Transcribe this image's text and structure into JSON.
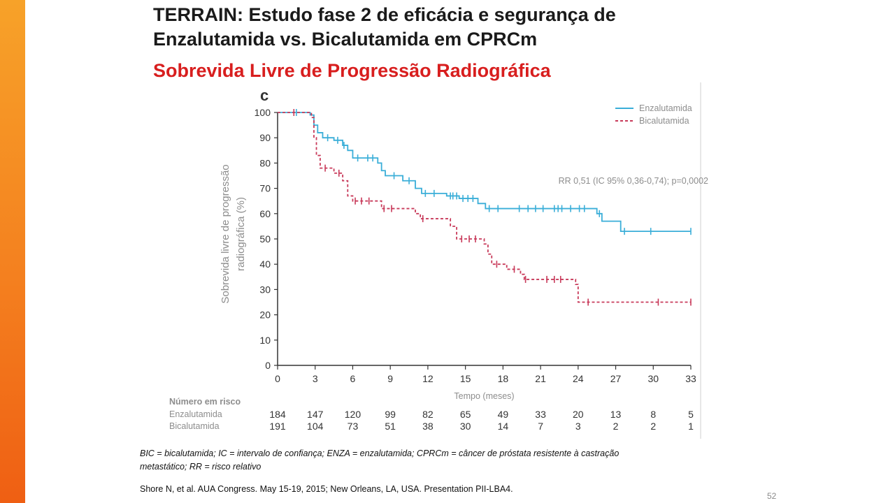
{
  "slide": {
    "title_line1": "TERRAIN: Estudo fase 2 de eficácia e segurança de",
    "title_line2": "Enzalutamida vs. Bicalutamida em CPRCm",
    "subtitle": "Sobrevida Livre de Progressão Radiográfica",
    "footnote_line1": "BIC = bicalutamida; IC = intervalo de confiança; ENZA = enzalutamida; CPRCm = câncer de próstata resistente à castração",
    "footnote_line2": "metastático; RR = risco relativo",
    "reference": "Shore N, et al. AUA Congress. May 15-19, 2015; New Orleans, LA, USA. Presentation PII-LBA4.",
    "page_number": "52",
    "accent_color": "#f4801f"
  },
  "chart_data": {
    "type": "line",
    "panel_label": "c",
    "ylabel_line1": "Sobrevida livre de progressão",
    "ylabel_line2": "radiográfica (%)",
    "xlabel": "Tempo (meses)",
    "ylim": [
      0,
      100
    ],
    "xlim": [
      0,
      33
    ],
    "yticks": [
      0,
      10,
      20,
      30,
      40,
      50,
      60,
      70,
      80,
      90,
      100
    ],
    "xticks": [
      0,
      3,
      6,
      9,
      12,
      15,
      18,
      21,
      24,
      27,
      30,
      33
    ],
    "legend_position": "top-right",
    "annotation": "RR 0,51 (IC 95% 0,36-0,74); p=0,0002",
    "series": [
      {
        "name": "Enzalutamida",
        "color": "#3aaed8",
        "dash": "solid",
        "steps": [
          [
            0,
            100
          ],
          [
            2.6,
            99
          ],
          [
            2.9,
            95
          ],
          [
            3.2,
            92
          ],
          [
            3.6,
            90
          ],
          [
            4.5,
            89
          ],
          [
            5.2,
            87
          ],
          [
            5.6,
            85
          ],
          [
            6.0,
            82
          ],
          [
            8.0,
            80
          ],
          [
            8.3,
            77
          ],
          [
            8.6,
            75
          ],
          [
            10.0,
            73
          ],
          [
            11.0,
            70
          ],
          [
            11.5,
            68
          ],
          [
            13.5,
            67
          ],
          [
            14.5,
            66
          ],
          [
            16.0,
            64
          ],
          [
            16.6,
            62
          ],
          [
            25.5,
            60
          ],
          [
            25.9,
            57
          ],
          [
            27.4,
            53
          ],
          [
            33,
            53
          ]
        ],
        "censors": [
          [
            1.5,
            100
          ],
          [
            4.0,
            90
          ],
          [
            4.8,
            89
          ],
          [
            5.3,
            87
          ],
          [
            6.4,
            82
          ],
          [
            7.2,
            82
          ],
          [
            7.6,
            82
          ],
          [
            9.3,
            75
          ],
          [
            10.5,
            73
          ],
          [
            11.8,
            68
          ],
          [
            12.5,
            68
          ],
          [
            13.8,
            67
          ],
          [
            14.0,
            67
          ],
          [
            14.3,
            67
          ],
          [
            14.8,
            66
          ],
          [
            15.2,
            66
          ],
          [
            15.6,
            66
          ],
          [
            16.9,
            62
          ],
          [
            17.6,
            62
          ],
          [
            19.3,
            62
          ],
          [
            20.0,
            62
          ],
          [
            20.6,
            62
          ],
          [
            21.2,
            62
          ],
          [
            22.1,
            62
          ],
          [
            22.4,
            62
          ],
          [
            22.7,
            62
          ],
          [
            23.4,
            62
          ],
          [
            24.1,
            62
          ],
          [
            24.5,
            62
          ],
          [
            25.7,
            60
          ],
          [
            27.7,
            53
          ],
          [
            29.8,
            53
          ],
          [
            33,
            53
          ]
        ]
      },
      {
        "name": "Bicalutamida",
        "color": "#c83a5a",
        "dash": "dashed",
        "steps": [
          [
            0,
            100
          ],
          [
            2.7,
            98
          ],
          [
            2.9,
            90
          ],
          [
            3.1,
            83
          ],
          [
            3.4,
            78
          ],
          [
            4.5,
            76
          ],
          [
            5.2,
            73
          ],
          [
            5.6,
            67
          ],
          [
            6.0,
            65
          ],
          [
            8.3,
            62
          ],
          [
            9.5,
            62
          ],
          [
            11.0,
            60
          ],
          [
            11.4,
            58
          ],
          [
            13.8,
            55
          ],
          [
            14.3,
            50
          ],
          [
            16.5,
            48
          ],
          [
            16.8,
            44
          ],
          [
            17.1,
            40
          ],
          [
            18.3,
            38
          ],
          [
            19.4,
            36
          ],
          [
            19.7,
            34
          ],
          [
            23.8,
            32
          ],
          [
            24.0,
            25
          ],
          [
            33,
            25
          ]
        ],
        "censors": [
          [
            1.3,
            100
          ],
          [
            3.8,
            78
          ],
          [
            4.9,
            76
          ],
          [
            6.2,
            65
          ],
          [
            6.7,
            65
          ],
          [
            7.3,
            65
          ],
          [
            8.5,
            62
          ],
          [
            9.1,
            62
          ],
          [
            11.6,
            58
          ],
          [
            14.7,
            50
          ],
          [
            15.3,
            50
          ],
          [
            15.8,
            50
          ],
          [
            17.5,
            40
          ],
          [
            18.9,
            38
          ],
          [
            19.8,
            34
          ],
          [
            21.5,
            34
          ],
          [
            22.1,
            34
          ],
          [
            22.6,
            34
          ],
          [
            24.8,
            25
          ],
          [
            30.4,
            25
          ],
          [
            33,
            25
          ]
        ]
      }
    ],
    "at_risk": {
      "heading": "Número em risco",
      "rows": [
        {
          "label": "Enzalutamida",
          "values": [
            "184",
            "147",
            "120",
            "99",
            "82",
            "65",
            "49",
            "33",
            "20",
            "13",
            "8",
            "5"
          ]
        },
        {
          "label": "Bicalutamida",
          "values": [
            "191",
            "104",
            "73",
            "51",
            "38",
            "30",
            "14",
            "7",
            "3",
            "2",
            "2",
            "1"
          ]
        }
      ]
    }
  }
}
